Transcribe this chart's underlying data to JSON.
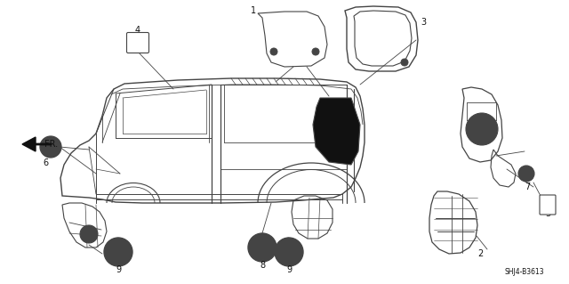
{
  "background_color": "#ffffff",
  "line_color": "#444444",
  "dark_color": "#111111",
  "fig_width": 6.4,
  "fig_height": 3.19,
  "dpi": 100,
  "diagram_id": "SHJ4-B3613"
}
